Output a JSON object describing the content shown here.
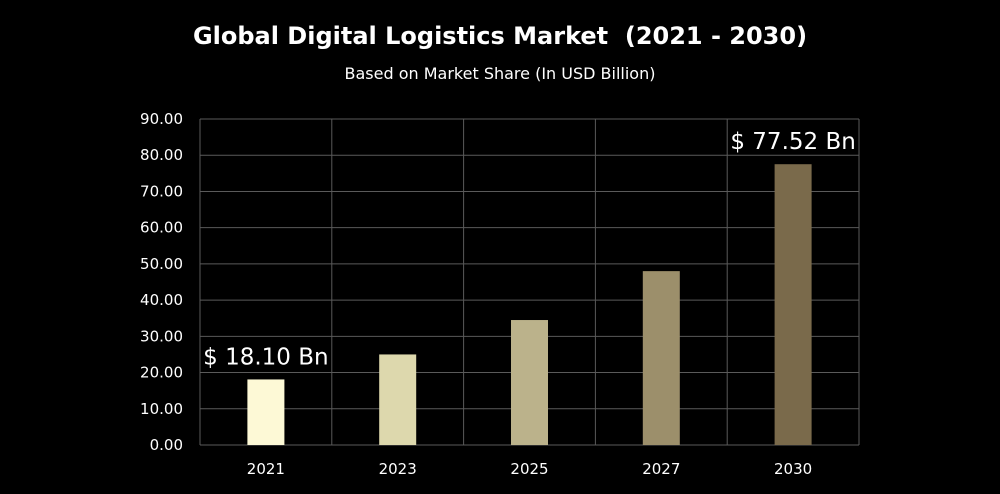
{
  "chart_data": {
    "type": "bar",
    "title": "Global Digital Logistics Market  (2021 - 2030)",
    "subtitle": "Based on Market Share (In USD Billion)",
    "categories": [
      "2021",
      "2023",
      "2025",
      "2027",
      "2030"
    ],
    "values": [
      18.1,
      25.0,
      34.5,
      48.0,
      77.52
    ],
    "ylim": [
      0,
      90
    ],
    "yticks": [
      "0.00",
      "10.00",
      "20.00",
      "30.00",
      "40.00",
      "50.00",
      "60.00",
      "70.00",
      "80.00",
      "90.00"
    ],
    "grid": true,
    "legend": "none",
    "data_labels": [
      {
        "index": 0,
        "text": "$ 18.10 Bn"
      },
      {
        "index": 4,
        "text": "$ 77.52 Bn"
      }
    ],
    "bar_colors": [
      "#fdf9d6",
      "#ddd8ad",
      "#bbb28b",
      "#9c8f6b",
      "#7a6a4b"
    ],
    "grid_color": "#5a5a5a",
    "background": "#000000"
  }
}
